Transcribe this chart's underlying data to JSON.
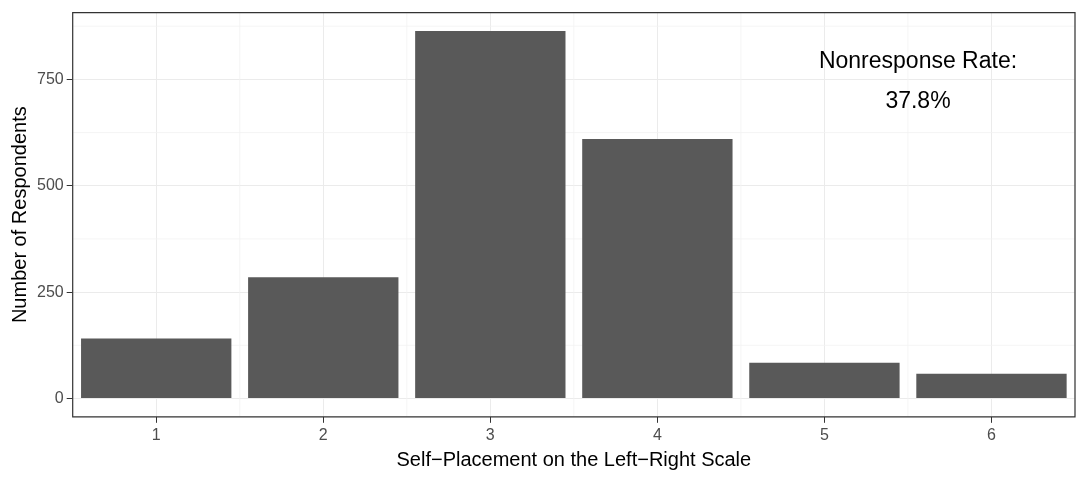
{
  "chart_data": {
    "type": "bar",
    "xlabel": "Self−Placement on the Left−Right Scale",
    "ylabel": "Number of Respondents",
    "categories": [
      "1",
      "2",
      "3",
      "4",
      "5",
      "6"
    ],
    "values": [
      141,
      285,
      864,
      610,
      84,
      58
    ],
    "color": "#595959",
    "ylim": [
      -43,
      907
    ],
    "yticks": [
      0,
      250,
      500,
      750
    ],
    "grid": true,
    "legend": false,
    "annotations": [
      "Nonresponse Rate:\n37.8%"
    ]
  }
}
